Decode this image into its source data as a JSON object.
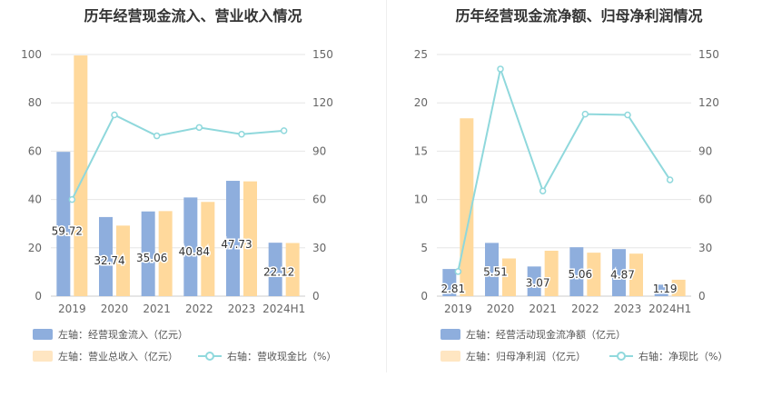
{
  "colors": {
    "bar_primary": "#8eaedd",
    "bar_secondary": "#ffd99c",
    "line": "#8fd8dc",
    "grid": "#e6e6e6",
    "axis_text": "#666666"
  },
  "chart_data": [
    {
      "type": "bar",
      "title": "历年经营现金流入、营业收入情况",
      "categories": [
        "2019",
        "2020",
        "2021",
        "2022",
        "2023",
        "2024H1"
      ],
      "ylim_left": [
        0,
        100
      ],
      "yticks_left": [
        0,
        20,
        40,
        60,
        80,
        100
      ],
      "ylim_right": [
        0,
        150
      ],
      "yticks_right": [
        0,
        30,
        60,
        90,
        120,
        150
      ],
      "series": [
        {
          "name": "左轴：经营现金流入（亿元）",
          "axis": "left",
          "kind": "bar",
          "values": [
            59.72,
            32.74,
            35.06,
            40.84,
            47.73,
            22.12
          ],
          "labels": [
            "59.72",
            "32.74",
            "35.06",
            "40.84",
            "47.73",
            "22.12"
          ]
        },
        {
          "name": "左轴：营业总收入（亿元）",
          "axis": "left",
          "kind": "bar",
          "values": [
            99.6,
            29.2,
            35.2,
            39.0,
            47.5,
            22.0
          ]
        },
        {
          "name": "右轴：营收现金比（%）",
          "axis": "right",
          "kind": "line",
          "values": [
            60.0,
            112.5,
            99.5,
            104.7,
            100.5,
            102.7
          ]
        }
      ],
      "legend_position": "bottom-left",
      "grid": true
    },
    {
      "type": "bar",
      "title": "历年经营现金流净额、归母净利润情况",
      "categories": [
        "2019",
        "2020",
        "2021",
        "2022",
        "2023",
        "2024H1"
      ],
      "ylim_left": [
        0,
        25
      ],
      "yticks_left": [
        0,
        5,
        10,
        15,
        20,
        25
      ],
      "ylim_right": [
        0,
        150
      ],
      "yticks_right": [
        0,
        30,
        60,
        90,
        120,
        150
      ],
      "series": [
        {
          "name": "左轴：经营活动现金流净额（亿元）",
          "axis": "left",
          "kind": "bar",
          "values": [
            2.81,
            5.51,
            3.07,
            5.06,
            4.87,
            1.19
          ],
          "labels": [
            "2.81",
            "5.51",
            "3.07",
            "5.06",
            "4.87",
            "1.19"
          ]
        },
        {
          "name": "左轴：归母净利润（亿元）",
          "axis": "left",
          "kind": "bar",
          "values": [
            18.4,
            3.9,
            4.7,
            4.5,
            4.4,
            1.7
          ]
        },
        {
          "name": "右轴：净现比（%）",
          "axis": "right",
          "kind": "line",
          "values": [
            15.3,
            141.0,
            65.3,
            113.0,
            112.5,
            72.2
          ]
        }
      ],
      "legend_position": "bottom-left",
      "grid": true
    }
  ]
}
